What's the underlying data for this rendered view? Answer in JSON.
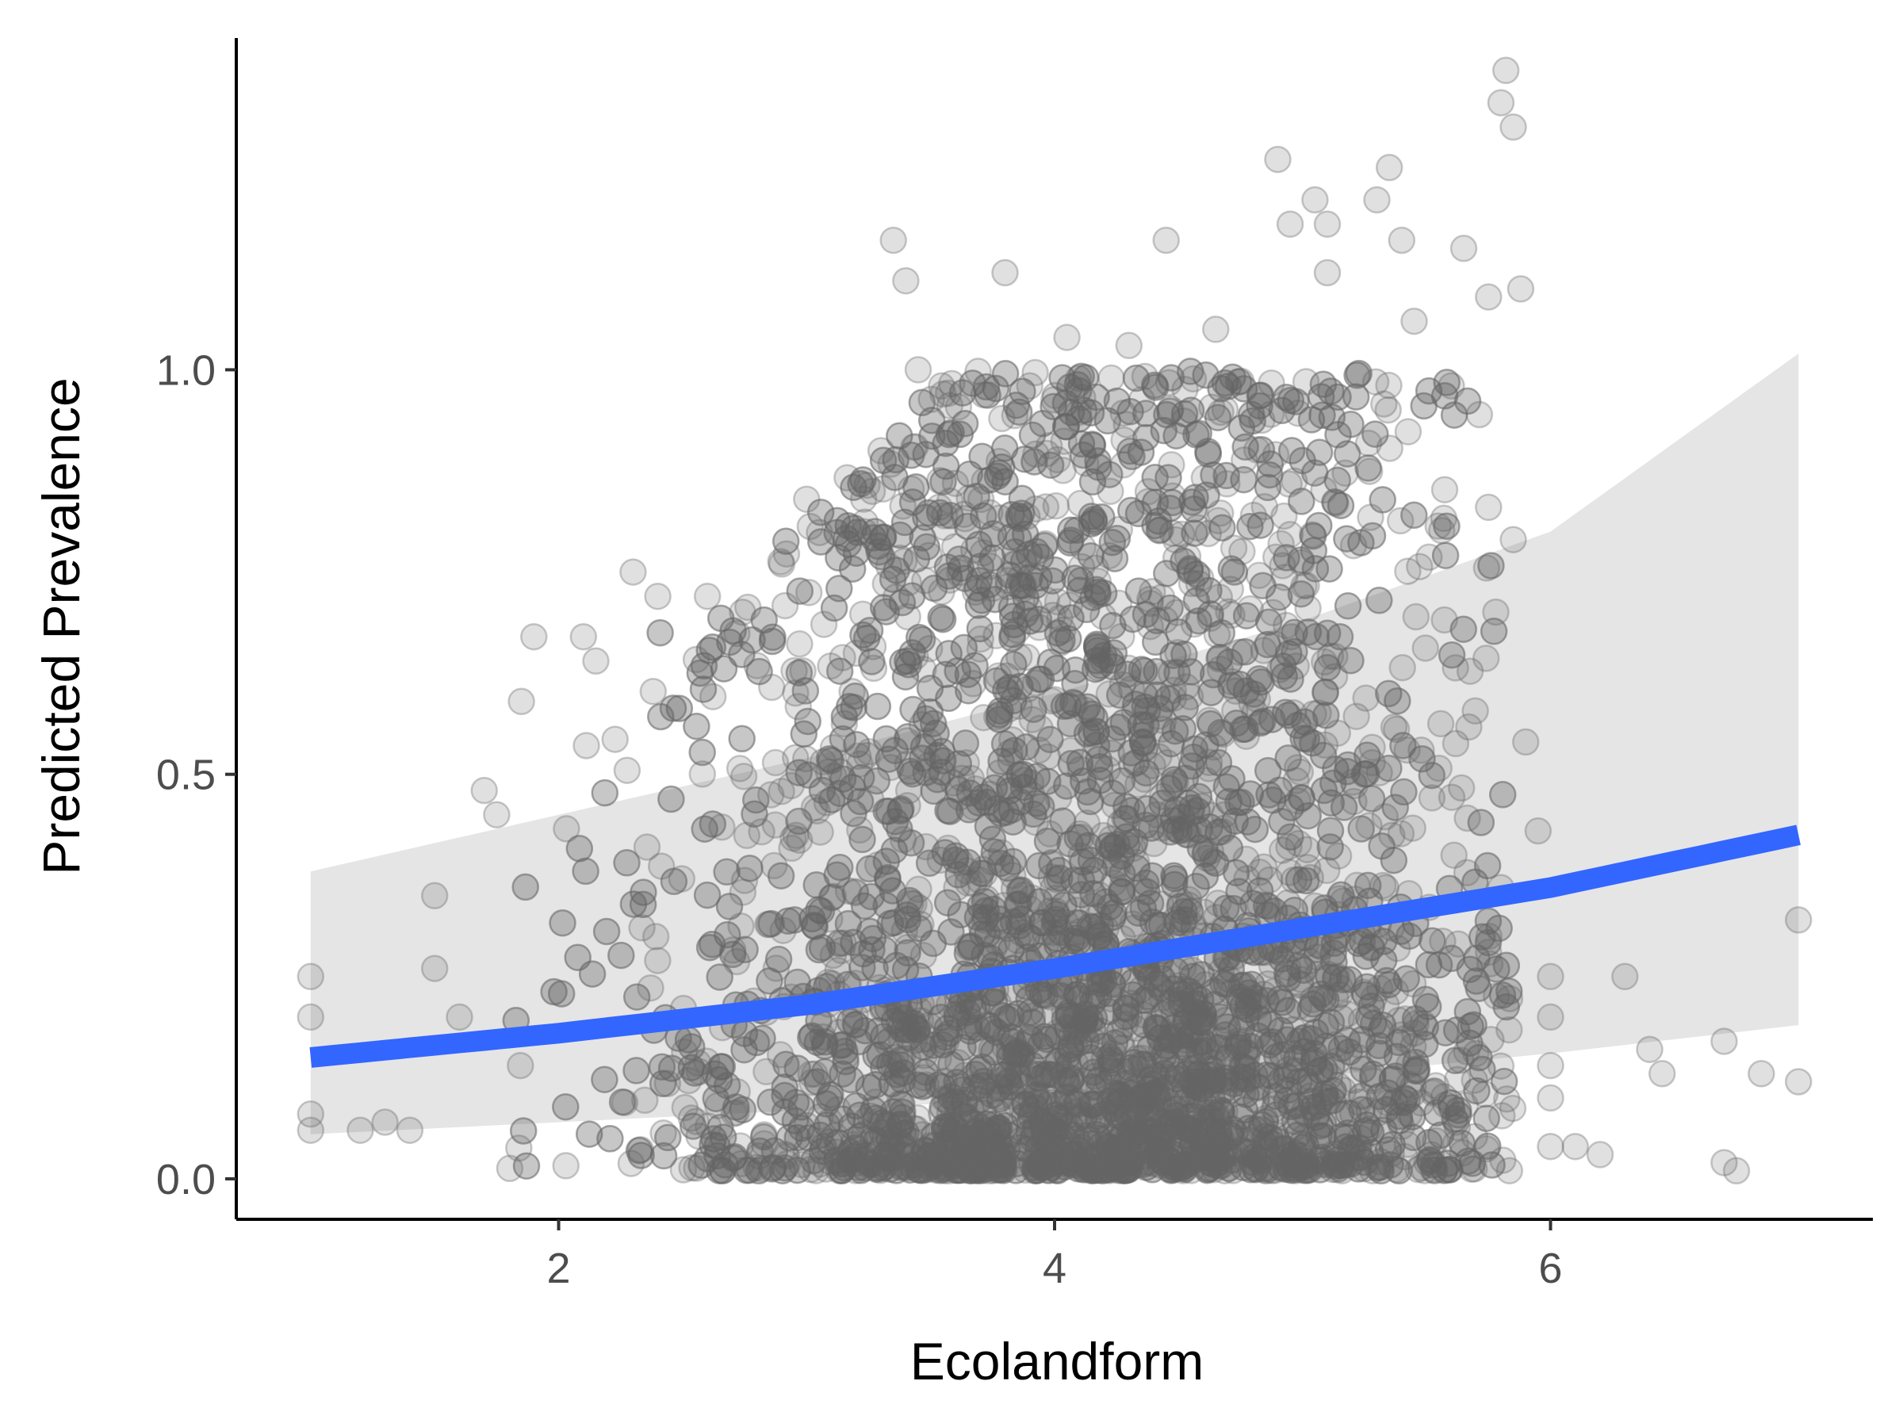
{
  "chart_data": {
    "type": "scatter",
    "title": "",
    "xlabel": "Ecolandform",
    "ylabel": "Predicted Prevalence",
    "xlim": [
      0.7,
      7.3
    ],
    "ylim": [
      -0.05,
      1.41
    ],
    "x_ticks": [
      2,
      4,
      6
    ],
    "x_tick_labels": [
      "2",
      "4",
      "6"
    ],
    "y_ticks": [
      0.0,
      0.5,
      1.0
    ],
    "y_tick_labels": [
      "0.0",
      "0.5",
      "1.0"
    ],
    "grid": false,
    "legend": "none",
    "point_color": "#666666",
    "point_opacity": 0.2,
    "point_style": "filled circle with darker outline, semi-transparent",
    "points_note": "~6000 jittered observations; dense mass between x=2.5 and x=5.5 with y mostly 0.0–0.6; sparse outliers up to y≈1.38 near x≈5.8",
    "points": [
      {
        "x": 1.0,
        "y": 0.25
      },
      {
        "x": 1.0,
        "y": 0.2
      },
      {
        "x": 1.0,
        "y": 0.08
      },
      {
        "x": 1.0,
        "y": 0.06
      },
      {
        "x": 1.2,
        "y": 0.06
      },
      {
        "x": 1.3,
        "y": 0.07
      },
      {
        "x": 1.4,
        "y": 0.06
      },
      {
        "x": 1.5,
        "y": 0.35
      },
      {
        "x": 1.5,
        "y": 0.26
      },
      {
        "x": 1.6,
        "y": 0.2
      },
      {
        "x": 1.7,
        "y": 0.48
      },
      {
        "x": 1.75,
        "y": 0.45
      },
      {
        "x": 1.85,
        "y": 0.59
      },
      {
        "x": 1.9,
        "y": 0.67
      },
      {
        "x": 2.1,
        "y": 0.67
      },
      {
        "x": 2.15,
        "y": 0.64
      },
      {
        "x": 2.3,
        "y": 0.75
      },
      {
        "x": 2.4,
        "y": 0.72
      },
      {
        "x": 2.6,
        "y": 0.72
      },
      {
        "x": 2.9,
        "y": 0.76
      },
      {
        "x": 3.0,
        "y": 0.84
      },
      {
        "x": 3.3,
        "y": 0.9
      },
      {
        "x": 3.35,
        "y": 1.16
      },
      {
        "x": 3.4,
        "y": 1.11
      },
      {
        "x": 3.45,
        "y": 1.0
      },
      {
        "x": 3.55,
        "y": 0.97
      },
      {
        "x": 3.8,
        "y": 1.12
      },
      {
        "x": 3.9,
        "y": 0.98
      },
      {
        "x": 4.05,
        "y": 1.04
      },
      {
        "x": 4.3,
        "y": 1.03
      },
      {
        "x": 4.45,
        "y": 1.16
      },
      {
        "x": 4.65,
        "y": 1.05
      },
      {
        "x": 4.9,
        "y": 1.26
      },
      {
        "x": 4.95,
        "y": 1.18
      },
      {
        "x": 5.05,
        "y": 1.21
      },
      {
        "x": 5.1,
        "y": 1.18
      },
      {
        "x": 5.1,
        "y": 1.12
      },
      {
        "x": 5.3,
        "y": 1.21
      },
      {
        "x": 5.35,
        "y": 1.25
      },
      {
        "x": 5.4,
        "y": 1.16
      },
      {
        "x": 5.45,
        "y": 1.06
      },
      {
        "x": 5.65,
        "y": 1.15
      },
      {
        "x": 5.75,
        "y": 1.09
      },
      {
        "x": 5.8,
        "y": 1.33
      },
      {
        "x": 5.82,
        "y": 1.37
      },
      {
        "x": 5.85,
        "y": 1.3
      },
      {
        "x": 5.88,
        "y": 1.1
      },
      {
        "x": 5.6,
        "y": 0.98
      },
      {
        "x": 5.75,
        "y": 0.83
      },
      {
        "x": 5.85,
        "y": 0.79
      },
      {
        "x": 5.9,
        "y": 0.54
      },
      {
        "x": 5.95,
        "y": 0.43
      },
      {
        "x": 5.8,
        "y": 0.36
      },
      {
        "x": 5.75,
        "y": 0.28
      },
      {
        "x": 6.0,
        "y": 0.25
      },
      {
        "x": 6.0,
        "y": 0.2
      },
      {
        "x": 6.0,
        "y": 0.14
      },
      {
        "x": 6.0,
        "y": 0.1
      },
      {
        "x": 6.0,
        "y": 0.04
      },
      {
        "x": 6.1,
        "y": 0.04
      },
      {
        "x": 6.2,
        "y": 0.03
      },
      {
        "x": 6.3,
        "y": 0.25
      },
      {
        "x": 6.4,
        "y": 0.16
      },
      {
        "x": 6.45,
        "y": 0.13
      },
      {
        "x": 6.7,
        "y": 0.17
      },
      {
        "x": 6.7,
        "y": 0.02
      },
      {
        "x": 6.75,
        "y": 0.01
      },
      {
        "x": 6.85,
        "y": 0.13
      },
      {
        "x": 7.0,
        "y": 0.32
      },
      {
        "x": 7.0,
        "y": 0.12
      }
    ]
  },
  "fit": {
    "line_color": "#3366ff",
    "band_color": "#e5e5e5",
    "line_values": [
      [
        1.0,
        0.15
      ],
      [
        2.0,
        0.18
      ],
      [
        3.0,
        0.215
      ],
      [
        4.0,
        0.26
      ],
      [
        5.0,
        0.31
      ],
      [
        6.0,
        0.36
      ],
      [
        7.0,
        0.425
      ]
    ],
    "band_lower": [
      [
        1.0,
        0.055
      ],
      [
        2.0,
        0.07
      ],
      [
        3.0,
        0.085
      ],
      [
        4.0,
        0.1
      ],
      [
        5.0,
        0.125
      ],
      [
        6.0,
        0.155
      ],
      [
        7.0,
        0.19
      ]
    ],
    "band_upper": [
      [
        1.0,
        0.38
      ],
      [
        2.0,
        0.45
      ],
      [
        3.0,
        0.52
      ],
      [
        4.0,
        0.6
      ],
      [
        5.0,
        0.69
      ],
      [
        6.0,
        0.8
      ],
      [
        7.0,
        1.02
      ]
    ]
  }
}
